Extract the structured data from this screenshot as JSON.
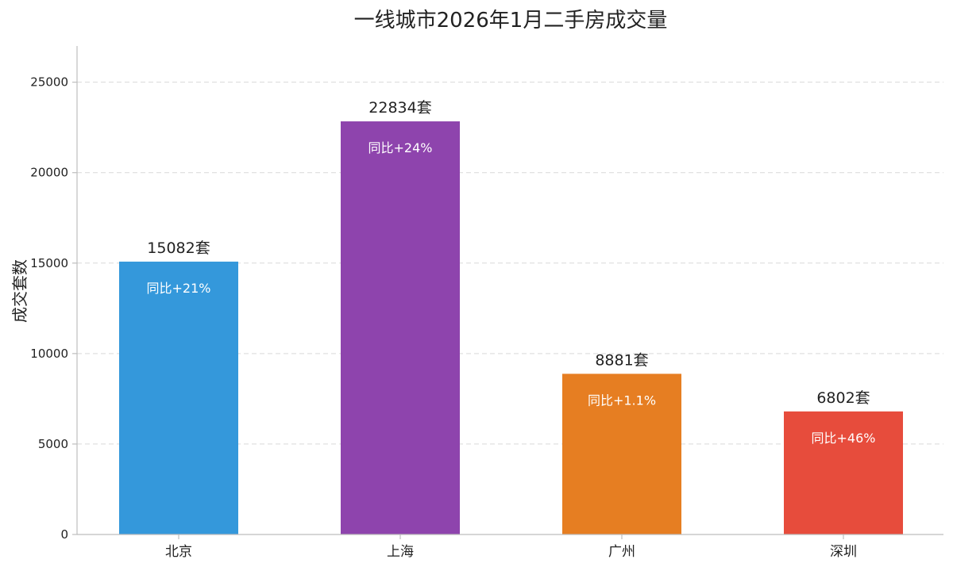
{
  "chart_data": {
    "type": "bar",
    "title": "一线城市2026年1月二手房成交量",
    "xlabel": "",
    "ylabel": "成交套数",
    "ylim": [
      0,
      27000
    ],
    "yticks": [
      0,
      5000,
      10000,
      15000,
      20000,
      25000
    ],
    "grid": "horizontal dashed",
    "categories": [
      "北京",
      "上海",
      "广州",
      "深圳"
    ],
    "values": [
      15082,
      22834,
      8881,
      6802
    ],
    "value_labels": [
      "15082套",
      "22834套",
      "8881套",
      "6802套"
    ],
    "yoy_labels": [
      "同比+21%",
      "同比+24%",
      "同比+1.1%",
      "同比+46%"
    ],
    "colors": [
      "#3498db",
      "#8e44ad",
      "#e67e22",
      "#e74c3c"
    ]
  }
}
